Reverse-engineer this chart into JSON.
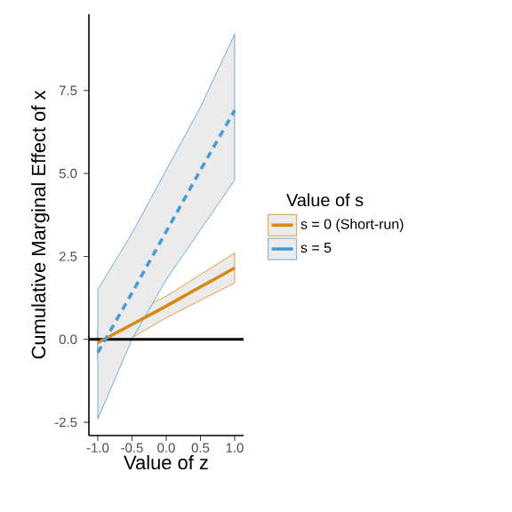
{
  "chart_data": {
    "type": "line",
    "xlabel": "Value of z",
    "ylabel": "Cumulative Marginal Effect of x",
    "legend_title": "Value of s",
    "legend": "right",
    "grid": false,
    "x": [
      -1,
      -0.5,
      0,
      0.5,
      1
    ],
    "xlim": [
      -1.13,
      1.13
    ],
    "xticks": [
      {
        "value": -1,
        "label": "-1.0"
      },
      {
        "value": -0.5,
        "label": "-0.5"
      },
      {
        "value": 0,
        "label": "0.0"
      },
      {
        "value": 0.5,
        "label": "0.5"
      },
      {
        "value": 1,
        "label": "1.0"
      }
    ],
    "ylim": [
      -2.9,
      9.8
    ],
    "yticks": [
      -2.5,
      {
        "value": 0,
        "label": "0.0"
      },
      2.5,
      {
        "value": 5,
        "label": "5.0"
      },
      7.5
    ],
    "series": [
      {
        "name": "s = 0 (Short-run)",
        "color": "#d68910",
        "line_style": "solid",
        "values": [
          -0.1,
          0.45,
          1.0,
          1.58,
          2.15
        ],
        "lower": [
          -0.55,
          0.05,
          0.65,
          1.18,
          1.7
        ],
        "upper": [
          0.25,
          0.8,
          1.3,
          1.95,
          2.6
        ]
      },
      {
        "name": "s = 5",
        "color": "#4a9ad8",
        "line_style": "dashed",
        "values": [
          -0.4,
          1.4,
          3.25,
          5.1,
          6.9
        ],
        "lower": [
          -2.4,
          0.0,
          1.8,
          3.3,
          4.8
        ],
        "upper": [
          1.5,
          3.2,
          5.1,
          7.0,
          9.2
        ]
      }
    ],
    "ref_lines": [
      {
        "axis": "y",
        "value": 0,
        "color": "#000000"
      }
    ]
  }
}
